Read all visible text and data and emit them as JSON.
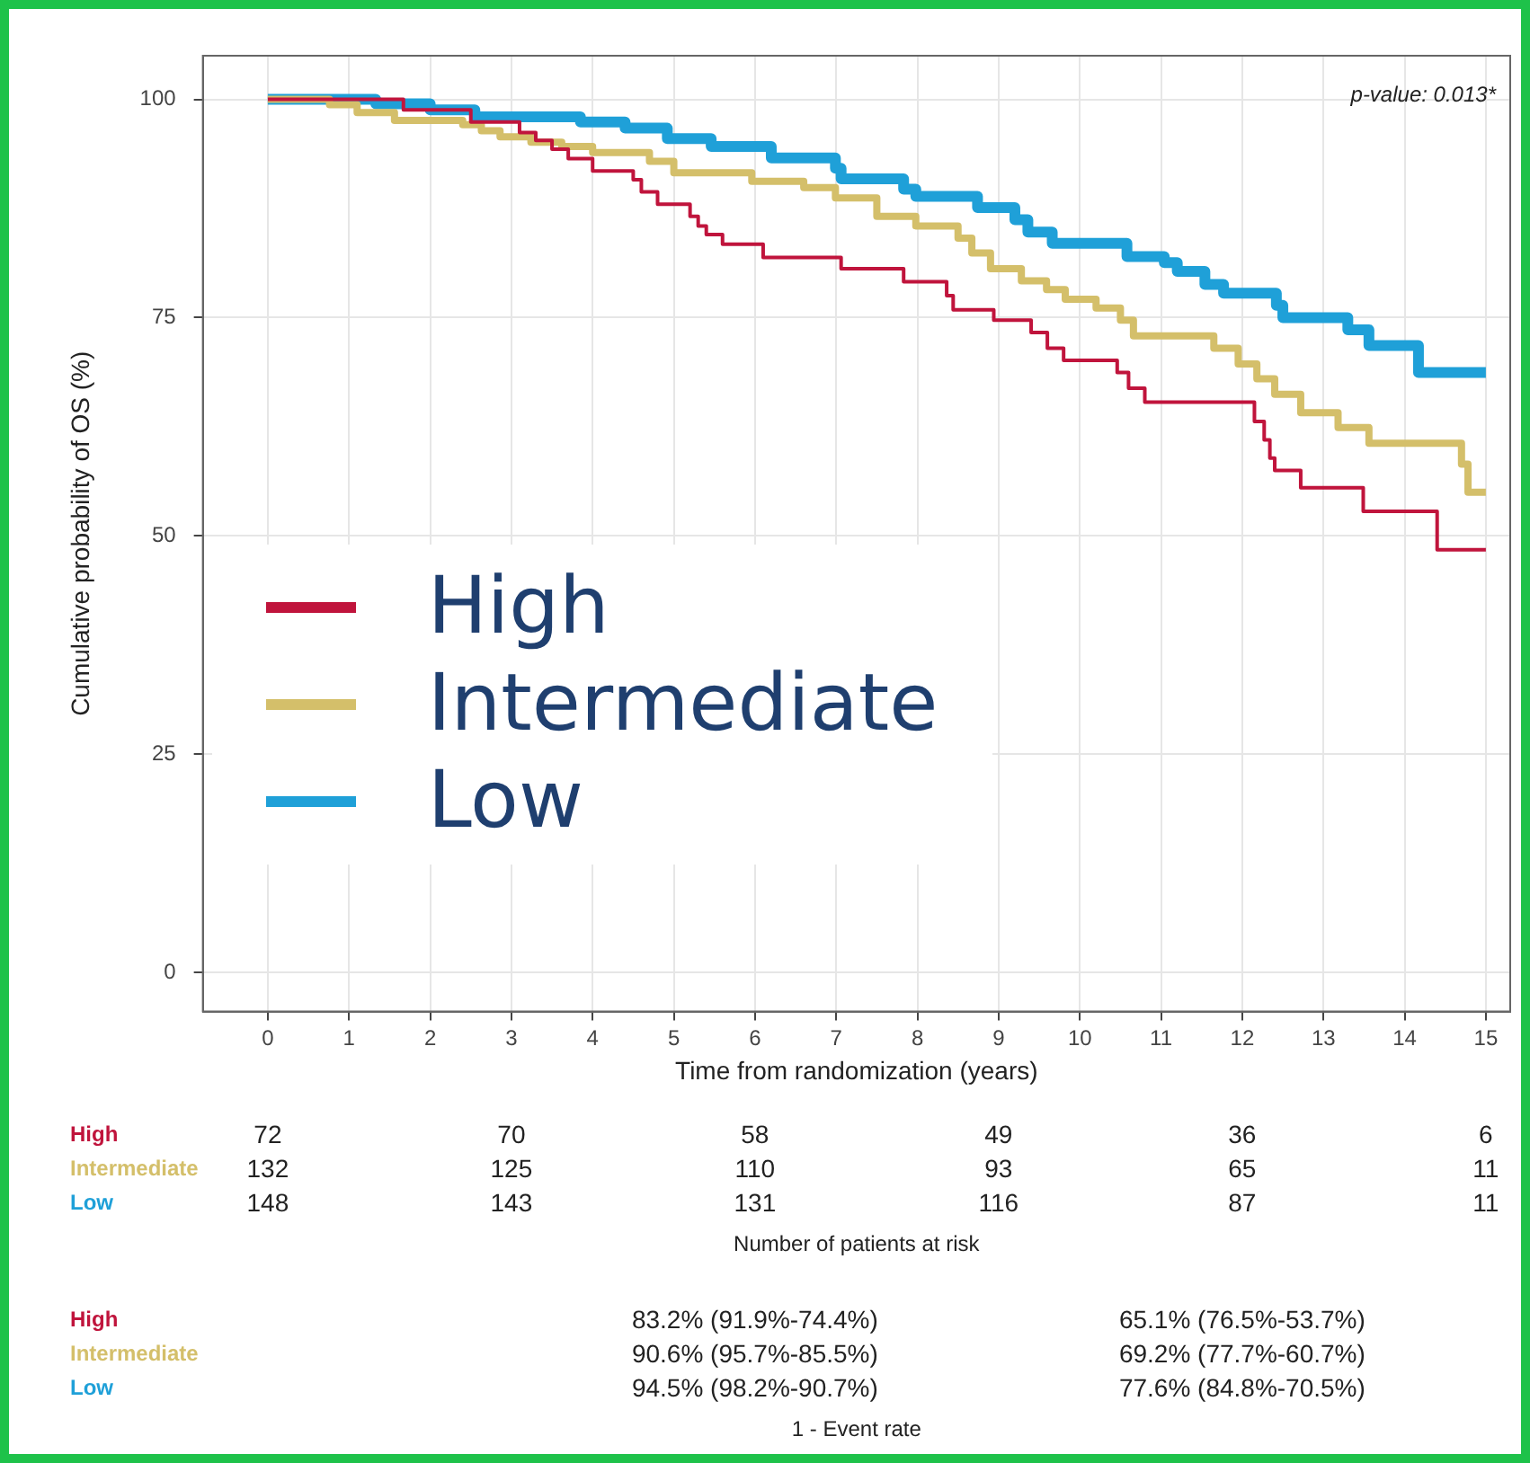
{
  "chart_data": {
    "type": "step",
    "xlabel": "Time from randomization (years)",
    "ylabel": "Cumulative probability of OS (%)",
    "xlim": [
      -0.8,
      15.3
    ],
    "ylim": [
      -4.5,
      105
    ],
    "xticks": [
      0,
      1,
      2,
      3,
      4,
      5,
      6,
      7,
      8,
      9,
      10,
      11,
      12,
      13,
      14,
      15
    ],
    "yticks": [
      0,
      25,
      50,
      75,
      100
    ],
    "grid": true,
    "legend": "bottom left",
    "line_style": "solid",
    "marker": "none",
    "series": [
      {
        "name": "High",
        "color": "#c0143c",
        "x": [
          0,
          1.67,
          2.5,
          3.1,
          3.3,
          3.5,
          3.7,
          4.0,
          4.5,
          4.6,
          4.8,
          5.2,
          5.3,
          5.4,
          5.6,
          6.1,
          7.06,
          7.83,
          8.36,
          8.44,
          8.94,
          9.4,
          9.6,
          9.8,
          10.46,
          10.6,
          10.8,
          12.15,
          12.27,
          12.34,
          12.4,
          12.72,
          13.49,
          14.4,
          15
        ],
        "values": [
          100,
          98.8,
          97.4,
          96.2,
          95.3,
          94.3,
          93.2,
          91.8,
          90.8,
          89.4,
          88,
          86.6,
          85.5,
          84.5,
          83.4,
          81.9,
          80.6,
          79.1,
          77.5,
          75.9,
          74.7,
          73.3,
          71.5,
          70.1,
          68.7,
          66.9,
          65.3,
          63.1,
          61,
          58.9,
          57.5,
          55.5,
          52.8,
          48.4,
          48.4
        ]
      },
      {
        "name": "Intermediate",
        "color": "#d4bf6a",
        "x": [
          0,
          0.76,
          1.1,
          1.56,
          2.4,
          2.63,
          2.86,
          3.24,
          3.62,
          4.0,
          4.7,
          5.0,
          5.96,
          6.6,
          6.99,
          7.5,
          7.98,
          8.5,
          8.67,
          8.9,
          9.28,
          9.59,
          9.82,
          10.2,
          10.5,
          10.66,
          11.65,
          11.95,
          12.18,
          12.4,
          12.72,
          13.18,
          13.56,
          14.7,
          14.78,
          15
        ],
        "values": [
          100,
          99.4,
          98.5,
          97.6,
          97.1,
          96.4,
          95.7,
          95.1,
          94.6,
          93.9,
          92.9,
          91.6,
          90.6,
          89.9,
          88.7,
          86.6,
          85.5,
          84.1,
          82.4,
          80.6,
          79.2,
          78.2,
          77.1,
          76.1,
          74.7,
          72.9,
          71.5,
          69.7,
          68,
          66.2,
          64.1,
          62.4,
          60.6,
          58.2,
          55,
          55
        ]
      },
      {
        "name": "Low",
        "color": "#1fa0d8",
        "x": [
          0,
          1.33,
          2.0,
          2.55,
          3.85,
          4.4,
          4.92,
          5.46,
          6.2,
          6.99,
          7.06,
          7.83,
          7.98,
          8.74,
          9.2,
          9.36,
          9.66,
          10.58,
          11.04,
          11.2,
          11.54,
          11.77,
          12.42,
          12.5,
          13.3,
          13.56,
          14.17,
          15
        ],
        "values": [
          100,
          99.5,
          98.8,
          98,
          97.4,
          96.7,
          95.5,
          94.6,
          93.3,
          92.1,
          90.9,
          89.7,
          88.9,
          87.6,
          86.2,
          84.8,
          83.5,
          82,
          81.3,
          80.3,
          78.8,
          77.8,
          76.4,
          75,
          73.6,
          71.8,
          68.7,
          68.7
        ]
      }
    ],
    "annotations": [
      "p-value: 0.013*",
      "72",
      "70",
      "58",
      "49",
      "36",
      "6",
      "132",
      "125",
      "110",
      "93",
      "65",
      "11",
      "148",
      "143",
      "131",
      "116",
      "87",
      "11",
      "Number of patients at risk",
      "83.2% (91.9%-74.4%)",
      "65.1% (76.5%-53.7%)",
      "90.6% (95.7%-85.5%)",
      "69.2% (77.7%-60.7%)",
      "94.5% (98.2%-90.7%)",
      "77.6% (84.8%-70.5%)",
      "1 - Event rate"
    ]
  }
}
